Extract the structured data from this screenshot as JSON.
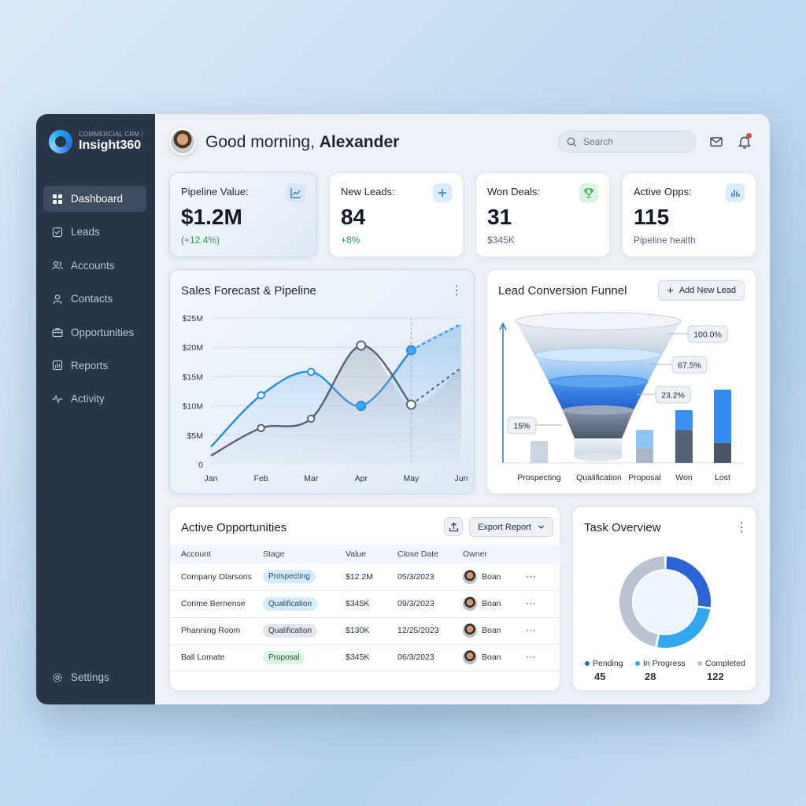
{
  "brand": {
    "subtitle": "COMMERCIAL CRM |",
    "name": "Insight360"
  },
  "sidebar": {
    "items": [
      {
        "label": "Dashboard",
        "icon": "dashboard-icon",
        "active": true
      },
      {
        "label": "Leads",
        "icon": "leads-icon"
      },
      {
        "label": "Accounts",
        "icon": "accounts-icon"
      },
      {
        "label": "Contacts",
        "icon": "contacts-icon"
      },
      {
        "label": "Opportunities",
        "icon": "briefcase-icon"
      },
      {
        "label": "Reports",
        "icon": "reports-icon"
      },
      {
        "label": "Activity",
        "icon": "activity-icon"
      }
    ],
    "settings": "Settings"
  },
  "header": {
    "greeting_prefix": "Good morning, ",
    "user_name": "Alexander",
    "search_placeholder": "Search"
  },
  "kpis": [
    {
      "label": "Pipeline Value:",
      "value": "$1.2M",
      "sub": "(+12.4%)",
      "icon": "trend-chart-icon"
    },
    {
      "label": "New Leads:",
      "value": "84",
      "sub": "+8%",
      "icon": "plus-icon"
    },
    {
      "label": "Won Deals:",
      "value": "31",
      "sub": "$345K",
      "icon": "trophy-icon"
    },
    {
      "label": "Active Opps:",
      "value": "115",
      "sub": "Pipeline health",
      "icon": "bar-chart-icon"
    }
  ],
  "forecast": {
    "title": "Sales Forecast & Pipeline"
  },
  "chart_data": [
    {
      "type": "line",
      "title": "Sales Forecast & Pipeline",
      "x": [
        "Jan",
        "Feb",
        "Mar",
        "Apr",
        "May",
        "Jun"
      ],
      "y_ticks": [
        "0",
        "$5M",
        "$10M",
        "$15M",
        "$20M",
        "$25M"
      ],
      "ylim": [
        0,
        25
      ],
      "grid": true,
      "series": [
        {
          "values": [
            3,
            11.8,
            15.8,
            10,
            19.5,
            24
          ],
          "color": "#2b8fe0",
          "forecast_from_index": 4
        },
        {
          "values": [
            1.5,
            6.2,
            7.8,
            20.3,
            10.2,
            16.5
          ],
          "color": "#5a6676",
          "forecast_from_index": 4
        }
      ]
    },
    {
      "type": "bar",
      "title": "Lead Conversion Funnel",
      "categories": [
        "Prospecting",
        "Qualification",
        "Proposal",
        "Won",
        "Lost"
      ],
      "funnel_labels": [
        "100.0%",
        "67.5%",
        "23.2%",
        "15%"
      ],
      "bars": [
        {
          "top": 0.3,
          "bottom": 0.0
        },
        {
          "top": 0.45,
          "bottom": 0.0
        },
        {
          "top": 0.45,
          "bottom": 0.2
        },
        {
          "top": 0.72,
          "bottom": 0.45
        },
        {
          "top": 1.0,
          "bottom": 0.27
        }
      ]
    },
    {
      "type": "pie",
      "title": "Task Overview",
      "labels": [
        "Pending",
        "In Progress",
        "Completed"
      ],
      "values": [
        45,
        28,
        122
      ],
      "colors": [
        "#2b64d6",
        "#32a6f0",
        "#b9c4d0"
      ]
    }
  ],
  "funnel": {
    "title": "Lead Conversion Funnel",
    "add_label": "Add New Lead"
  },
  "opportunities": {
    "title": "Active Opportunities",
    "export_label": "Export Report",
    "columns": [
      "Account",
      "Stage",
      "Value",
      "Close Date",
      "Owner"
    ],
    "rows": [
      {
        "account": "Company Olarsons",
        "stage": "Prospecting",
        "stage_style": "blue",
        "value": "$12.2M",
        "close": "05/3/2023",
        "owner": "Boan"
      },
      {
        "account": "Corime Bernense",
        "stage": "Qualification",
        "stage_style": "blue",
        "value": "$345K",
        "close": "09/3/2023",
        "owner": "Boan"
      },
      {
        "account": "Phanning Room",
        "stage": "Qualification",
        "stage_style": "gray",
        "value": "$130K",
        "close": "12/25/2023",
        "owner": "Boan"
      },
      {
        "account": "Ball Lomate",
        "stage": "Proposal",
        "stage_style": "green",
        "value": "$345K",
        "close": "06/3/2023",
        "owner": "Boan"
      }
    ]
  },
  "tasks": {
    "title": "Task Overview",
    "legend": [
      {
        "label": "Pending",
        "value": "45"
      },
      {
        "label": "In Progress",
        "value": "28"
      },
      {
        "label": "Completed",
        "value": "122"
      }
    ]
  }
}
